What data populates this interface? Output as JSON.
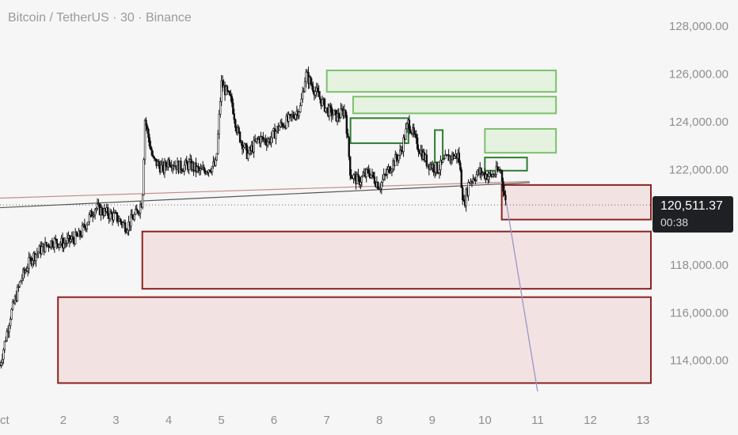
{
  "header": {
    "title": "Bitcoin / TetherUS · 30 · Binance"
  },
  "price_label": {
    "price": "120,511.37",
    "countdown": "00:38"
  },
  "colors": {
    "candle": "#111111",
    "demand_stroke": "#8b2323",
    "demand_fill": "#f3e2e2",
    "supply_stroke": "#7cc16c",
    "supply_fill": "#e4f2df",
    "supply_stroke_dark": "#2e7d32",
    "trendline": "#555555",
    "trendline_red": "#c48b8b",
    "projection": "#9b95c8"
  },
  "chart_data": {
    "type": "candlestick",
    "title": "Bitcoin / TetherUS · 30 · Binance",
    "x_tick_labels": [
      "ct",
      "2",
      "3",
      "4",
      "5",
      "6",
      "7",
      "8",
      "9",
      "10",
      "11",
      "12",
      "13"
    ],
    "x_ticks": [
      1,
      2,
      3,
      4,
      5,
      6,
      7,
      8,
      9,
      10,
      11,
      12,
      13
    ],
    "y_tick_labels": [
      "128,000.00",
      "126,000.00",
      "124,000.00",
      "122,000.00",
      "118,000.00",
      "116,000.00",
      "114,000.00"
    ],
    "y_ticks": [
      128000,
      126000,
      124000,
      122000,
      118000,
      116000,
      114000
    ],
    "ylim": [
      112200,
      129100
    ],
    "xlim": [
      0.8,
      13.15
    ],
    "current_price": 120511.37,
    "price_path": [
      [
        0.8,
        113800
      ],
      [
        1.0,
        115900
      ],
      [
        1.2,
        117400
      ],
      [
        1.4,
        118300
      ],
      [
        1.6,
        118700
      ],
      [
        1.8,
        119000
      ],
      [
        2.0,
        118900
      ],
      [
        2.3,
        119200
      ],
      [
        2.6,
        120400
      ],
      [
        2.8,
        120200
      ],
      [
        3.0,
        120000
      ],
      [
        3.2,
        119600
      ],
      [
        3.4,
        120200
      ],
      [
        3.5,
        120700
      ],
      [
        3.55,
        124100
      ],
      [
        3.7,
        122400
      ],
      [
        3.9,
        122000
      ],
      [
        4.0,
        122400
      ],
      [
        4.2,
        122100
      ],
      [
        4.4,
        122200
      ],
      [
        4.6,
        121900
      ],
      [
        4.8,
        122100
      ],
      [
        4.9,
        122200
      ],
      [
        5.0,
        125600
      ],
      [
        5.2,
        124800
      ],
      [
        5.3,
        123600
      ],
      [
        5.5,
        122600
      ],
      [
        5.7,
        123300
      ],
      [
        5.9,
        123200
      ],
      [
        6.1,
        123800
      ],
      [
        6.3,
        124100
      ],
      [
        6.5,
        124600
      ],
      [
        6.6,
        126000
      ],
      [
        6.75,
        125400
      ],
      [
        7.0,
        124500
      ],
      [
        7.2,
        124200
      ],
      [
        7.35,
        124500
      ],
      [
        7.45,
        121800
      ],
      [
        7.6,
        121500
      ],
      [
        7.8,
        121900
      ],
      [
        8.0,
        121300
      ],
      [
        8.2,
        122100
      ],
      [
        8.4,
        122700
      ],
      [
        8.55,
        124000
      ],
      [
        8.7,
        123100
      ],
      [
        8.9,
        122300
      ],
      [
        9.1,
        122000
      ],
      [
        9.3,
        122500
      ],
      [
        9.5,
        122600
      ],
      [
        9.6,
        120500
      ],
      [
        9.7,
        121500
      ],
      [
        9.9,
        121900
      ],
      [
        10.1,
        121700
      ],
      [
        10.3,
        122000
      ],
      [
        10.4,
        120500
      ]
    ],
    "trendlines": [
      {
        "from": [
          0.8,
          120400
        ],
        "to": [
          10.85,
          121450
        ]
      },
      {
        "from": [
          0.8,
          120800
        ],
        "to": [
          10.85,
          121500
        ]
      }
    ],
    "current_price_line": 120511.37,
    "projection": {
      "from": [
        10.4,
        120700
      ],
      "to": [
        11.0,
        112700
      ]
    },
    "demand_zones": [
      {
        "x": [
          10.32,
          13.15
        ],
        "y": [
          119900,
          121350
        ]
      },
      {
        "x": [
          3.5,
          13.15
        ],
        "y": [
          117000,
          119400
        ]
      },
      {
        "x": [
          1.9,
          13.15
        ],
        "y": [
          113050,
          116650
        ]
      }
    ],
    "supply_zones": [
      {
        "x": [
          7.0,
          11.35
        ],
        "y": [
          125250,
          126150
        ],
        "style": "light"
      },
      {
        "x": [
          7.5,
          11.35
        ],
        "y": [
          124350,
          125050
        ],
        "style": "light"
      },
      {
        "x": [
          7.45,
          8.55
        ],
        "y": [
          123100,
          124150
        ],
        "style": "dark"
      },
      {
        "x": [
          9.05,
          9.2
        ],
        "y": [
          122300,
          123650
        ],
        "style": "dark"
      },
      {
        "x": [
          10.0,
          11.35
        ],
        "y": [
          122700,
          123700
        ],
        "style": "light"
      },
      {
        "x": [
          10.0,
          10.8
        ],
        "y": [
          121950,
          122500
        ],
        "style": "dark"
      }
    ]
  }
}
